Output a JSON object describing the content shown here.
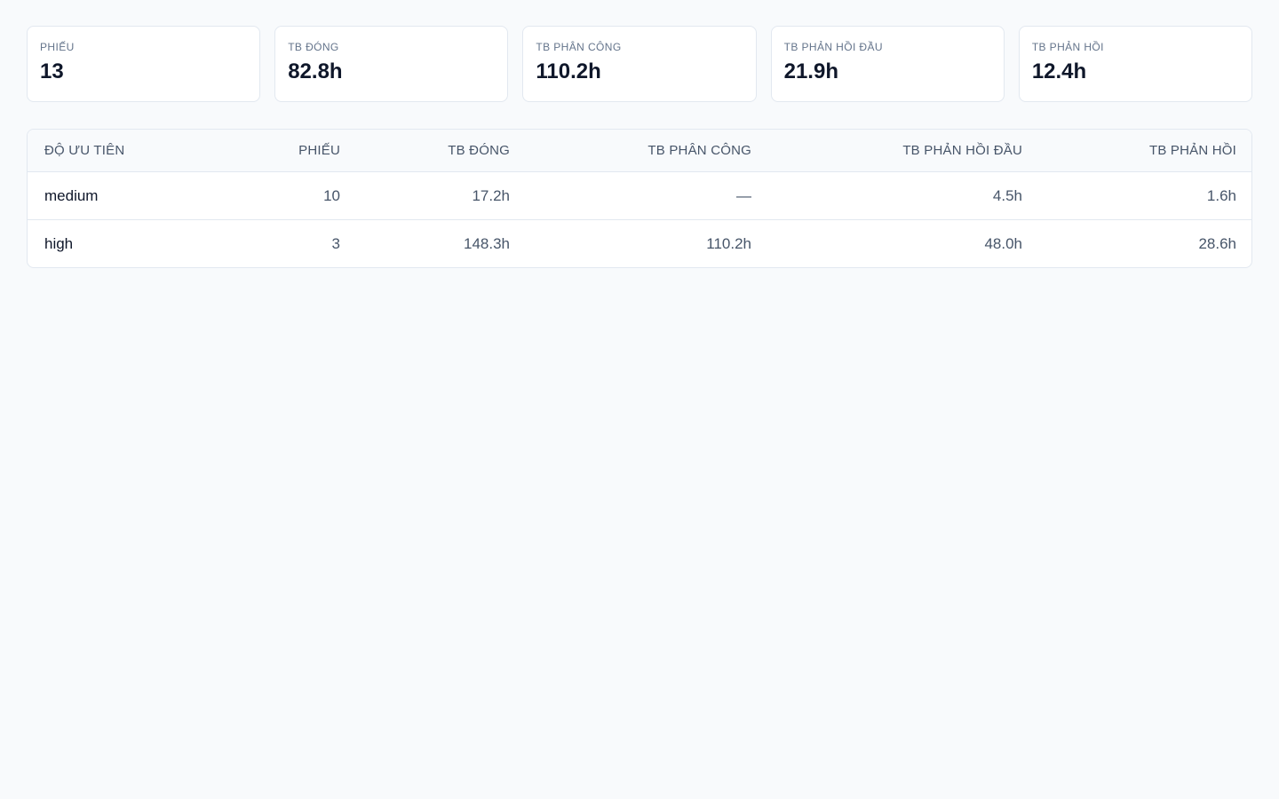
{
  "stats": [
    {
      "label": "PHIẾU",
      "value": "13"
    },
    {
      "label": "TB ĐÓNG",
      "value": "82.8h"
    },
    {
      "label": "TB PHÂN CÔNG",
      "value": "110.2h"
    },
    {
      "label": "TB PHẢN HỒI ĐẦU",
      "value": "21.9h"
    },
    {
      "label": "TB PHẢN HỒI",
      "value": "12.4h"
    }
  ],
  "table": {
    "headers": [
      "ĐỘ ƯU TIÊN",
      "PHIẾU",
      "TB ĐÓNG",
      "TB PHÂN CÔNG",
      "TB PHẢN HỒI ĐẦU",
      "TB PHẢN HỒI"
    ],
    "rows": [
      [
        "medium",
        "10",
        "17.2h",
        "—",
        "4.5h",
        "1.6h"
      ],
      [
        "high",
        "3",
        "148.3h",
        "110.2h",
        "48.0h",
        "28.6h"
      ]
    ]
  }
}
